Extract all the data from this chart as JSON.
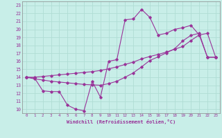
{
  "title": "",
  "xlabel": "Windchill (Refroidissement éolien,°C)",
  "background_color": "#c8eee8",
  "grid_color": "#b0ddd4",
  "line_color": "#993399",
  "x_hours": [
    0,
    1,
    2,
    3,
    4,
    5,
    6,
    7,
    8,
    9,
    10,
    11,
    12,
    13,
    14,
    15,
    16,
    17,
    18,
    19,
    20,
    21,
    22,
    23
  ],
  "line1": [
    14.0,
    13.9,
    12.3,
    12.2,
    12.2,
    10.5,
    10.0,
    9.8,
    13.5,
    11.5,
    16.0,
    16.2,
    21.2,
    21.3,
    22.5,
    21.5,
    19.3,
    19.5,
    20.0,
    20.2,
    20.5,
    19.3,
    16.5,
    16.5
  ],
  "line2": [
    14.0,
    14.0,
    14.1,
    14.2,
    14.3,
    14.4,
    14.5,
    14.6,
    14.7,
    14.85,
    15.05,
    15.3,
    15.6,
    15.9,
    16.3,
    16.6,
    16.85,
    17.15,
    17.5,
    17.85,
    18.6,
    19.3,
    19.5,
    16.5
  ],
  "line3": [
    14.0,
    13.8,
    13.65,
    13.5,
    13.4,
    13.3,
    13.2,
    13.1,
    13.05,
    13.0,
    13.2,
    13.5,
    14.0,
    14.55,
    15.3,
    16.1,
    16.55,
    17.05,
    17.55,
    18.55,
    19.25,
    19.5,
    16.5,
    16.5
  ],
  "ylim": [
    9.5,
    23.5
  ],
  "xlim": [
    -0.5,
    23.5
  ],
  "yticks": [
    10,
    11,
    12,
    13,
    14,
    15,
    16,
    17,
    18,
    19,
    20,
    21,
    22,
    23
  ],
  "xticks": [
    0,
    1,
    2,
    3,
    4,
    5,
    6,
    7,
    8,
    9,
    10,
    11,
    12,
    13,
    14,
    15,
    16,
    17,
    18,
    19,
    20,
    21,
    22,
    23
  ]
}
